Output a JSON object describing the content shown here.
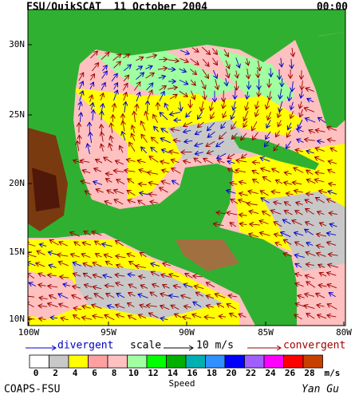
{
  "header": {
    "title": "FSU/QuikSCAT  11 October 2004",
    "time": "00:00"
  },
  "map": {
    "lat_labels": [
      "30N",
      "25N",
      "20N",
      "15N",
      "10N"
    ],
    "lon_labels": [
      "100W",
      "95W",
      "90W",
      "85W",
      "80W"
    ]
  },
  "legend": {
    "divergent": "divergent",
    "scale": "scale",
    "scale_value": "10 m/s",
    "convergent": "convergent"
  },
  "colorbar": {
    "ticks": [
      0,
      2,
      4,
      6,
      8,
      10,
      12,
      14,
      16,
      18,
      20,
      22,
      24,
      26,
      28
    ],
    "colors": [
      "#ffffff",
      "#c8c8c8",
      "#ffff00",
      "#ffa0a0",
      "#ffc0c0",
      "#a0ffa0",
      "#00ff00",
      "#00b000",
      "#00b0b0",
      "#3090ff",
      "#0000ff",
      "#a060ff",
      "#ff00ff",
      "#ff0000",
      "#c84000"
    ],
    "unit": "m/s",
    "label": "Speed"
  },
  "footer": {
    "left": "COAPS-FSU",
    "right": "Yan Gu"
  }
}
